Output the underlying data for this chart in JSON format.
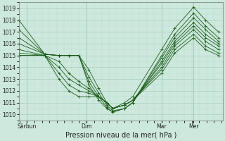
{
  "title": "Pression niveau de la mer( hPa )",
  "bg_color": "#cde8dc",
  "grid_color_major": "#a0c8b8",
  "grid_color_minor": "#b8d8cc",
  "line_color": "#1a5c1a",
  "marker_color": "#1a5c1a",
  "ylim": [
    1009.5,
    1019.5
  ],
  "yticks": [
    1010,
    1011,
    1012,
    1013,
    1014,
    1015,
    1016,
    1017,
    1018,
    1019
  ],
  "xlabel_fontsize": 7,
  "xtick_labels": [
    "Sârbun",
    "Dim",
    "Mar",
    "Mer"
  ],
  "xtick_positions": [
    0.04,
    0.34,
    0.715,
    0.875
  ],
  "series": [
    [
      1018.0,
      1015.1,
      1015.0,
      1015.0,
      1015.0,
      1013.8,
      1012.2,
      1011.0,
      1010.5,
      1011.0,
      1011.5,
      1015.5,
      1017.3,
      1019.1,
      1018.0,
      1017.0
    ],
    [
      1017.2,
      1015.1,
      1015.0,
      1015.0,
      1015.0,
      1013.2,
      1011.8,
      1010.8,
      1010.3,
      1010.5,
      1011.0,
      1015.0,
      1016.8,
      1018.6,
      1017.5,
      1016.5
    ],
    [
      1016.5,
      1015.1,
      1015.0,
      1015.0,
      1015.0,
      1012.8,
      1011.5,
      1010.6,
      1010.2,
      1010.5,
      1011.0,
      1014.8,
      1016.5,
      1018.2,
      1017.2,
      1016.2
    ],
    [
      1016.0,
      1015.1,
      1015.0,
      1015.0,
      1015.0,
      1012.5,
      1011.2,
      1010.5,
      1010.2,
      1010.5,
      1011.0,
      1014.5,
      1016.2,
      1017.8,
      1016.8,
      1016.0
    ],
    [
      1015.5,
      1015.0,
      1014.5,
      1013.5,
      1012.8,
      1012.2,
      1011.5,
      1011.0,
      1010.5,
      1010.8,
      1011.2,
      1014.3,
      1016.0,
      1017.5,
      1016.5,
      1015.8
    ],
    [
      1015.2,
      1015.0,
      1014.0,
      1013.0,
      1012.5,
      1012.0,
      1011.5,
      1011.0,
      1010.5,
      1010.8,
      1011.2,
      1014.0,
      1015.8,
      1017.2,
      1016.2,
      1015.5
    ],
    [
      1015.0,
      1015.0,
      1013.5,
      1012.5,
      1012.0,
      1011.8,
      1011.5,
      1011.0,
      1010.5,
      1010.8,
      1011.2,
      1013.8,
      1015.5,
      1016.8,
      1015.8,
      1015.2
    ],
    [
      1015.0,
      1015.0,
      1013.0,
      1012.0,
      1011.5,
      1011.5,
      1011.5,
      1011.0,
      1010.5,
      1010.8,
      1011.2,
      1013.5,
      1015.2,
      1016.5,
      1015.5,
      1015.0
    ]
  ],
  "x_points": [
    0.0,
    0.13,
    0.2,
    0.25,
    0.3,
    0.35,
    0.4,
    0.44,
    0.47,
    0.53,
    0.57,
    0.715,
    0.78,
    0.875,
    0.935,
    1.0
  ]
}
